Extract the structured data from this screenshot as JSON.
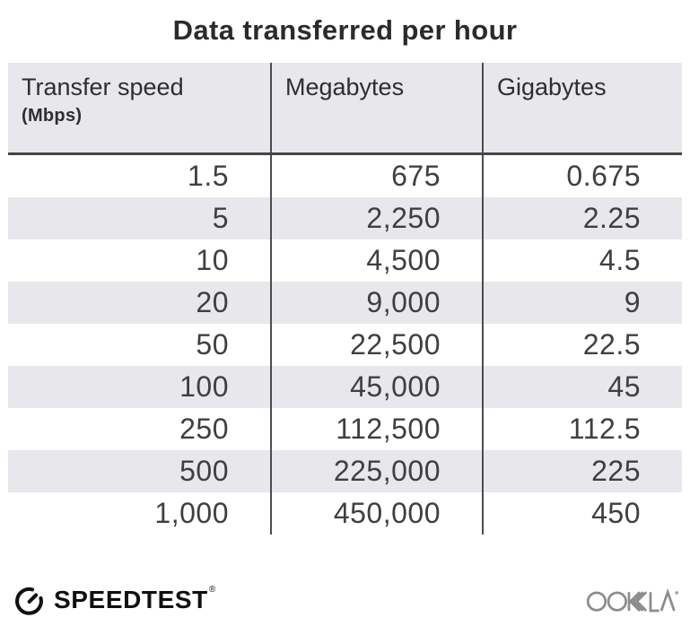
{
  "title": "Data transferred per hour",
  "table": {
    "headers": {
      "col1": "Transfer speed",
      "col1_sub": "(Mbps)",
      "col2": "Megabytes",
      "col3": "Gigabytes"
    },
    "rows": [
      [
        "1.5",
        "675",
        "0.675"
      ],
      [
        "5",
        "2,250",
        "2.25"
      ],
      [
        "10",
        "4,500",
        "4.5"
      ],
      [
        "20",
        "9,000",
        "9"
      ],
      [
        "50",
        "22,500",
        "22.5"
      ],
      [
        "100",
        "45,000",
        "45"
      ],
      [
        "250",
        "112,500",
        "112.5"
      ],
      [
        "500",
        "225,000",
        "225"
      ],
      [
        "1,000",
        "450,000",
        "450"
      ]
    ]
  },
  "footer": {
    "speedtest_label": "SPEEDTEST",
    "speedtest_reg": "®",
    "ookla_label": "OOKLA",
    "icons": [
      "speedtest-gauge-icon",
      "ookla-wordmark"
    ]
  },
  "colors": {
    "stripe_bg": "#e8e8ec",
    "header_bg": "#e8e8ec",
    "divider": "#4d4d4d",
    "header_border": "#454545",
    "title_text": "#2b2b2b",
    "number_text": "#3f3f3f",
    "logo_black": "#101010",
    "ookla_gray": "#8c8c8c"
  },
  "chart_data": {
    "type": "table",
    "title": "Data transferred per hour",
    "columns": [
      "Transfer speed (Mbps)",
      "Megabytes",
      "Gigabytes"
    ],
    "rows": [
      [
        1.5,
        675,
        0.675
      ],
      [
        5,
        2250,
        2.25
      ],
      [
        10,
        4500,
        4.5
      ],
      [
        20,
        9000,
        9
      ],
      [
        50,
        22500,
        22.5
      ],
      [
        100,
        45000,
        45
      ],
      [
        250,
        112500,
        112.5
      ],
      [
        500,
        225000,
        225
      ],
      [
        1000,
        450000,
        450
      ]
    ]
  }
}
